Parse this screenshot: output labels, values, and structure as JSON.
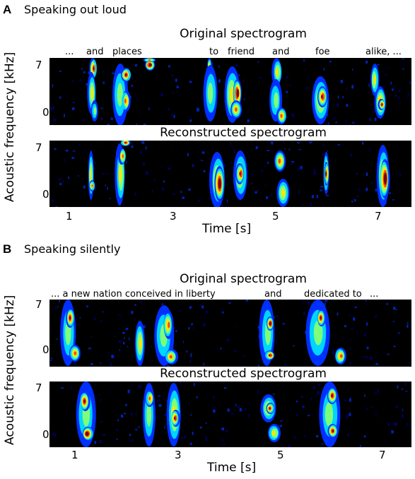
{
  "panels": [
    {
      "letter": "A",
      "title": "Speaking out loud",
      "original_title": "Original spectrogram",
      "reconstructed_title": "Reconstructed spectrogram",
      "words": [
        "...",
        "and",
        "places",
        "to",
        "friend",
        "and",
        "foe",
        "alike, ..."
      ],
      "y_label": "Acoustic frequency [kHz]",
      "y_ticks": [
        "7",
        "0"
      ],
      "x_ticks": [
        "1",
        "3",
        "5",
        "7"
      ],
      "x_label": "Time [s]"
    },
    {
      "letter": "B",
      "title": "Speaking silently",
      "original_title": "Original spectrogram",
      "reconstructed_title": "Reconstructed spectrogram",
      "words": [
        "... a new nation conceived in liberty",
        "and",
        "dedicated to",
        "..."
      ],
      "y_label": "Acoustic frequency [kHz]",
      "y_ticks": [
        "7",
        "0"
      ],
      "x_ticks": [
        "1",
        "3",
        "5",
        "7"
      ],
      "x_label": "Time [s]"
    }
  ],
  "colormap": [
    "#00007f",
    "#0030ff",
    "#00d4ff",
    "#7dff7a",
    "#ffe600",
    "#ff4a00",
    "#7f0000"
  ]
}
